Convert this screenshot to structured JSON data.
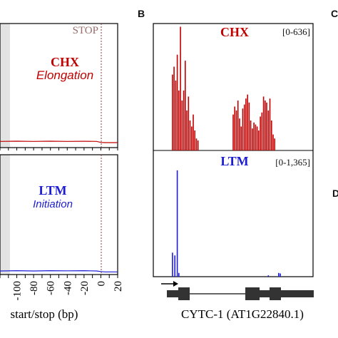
{
  "panel_labels": {
    "b": "B",
    "c": "C",
    "d": "D"
  },
  "colors": {
    "chx": "#c00000",
    "ltm": "#1c1cd6",
    "stop_line": "#8b3a3a",
    "stop_text": "#9a6b6b",
    "axis": "#000000",
    "shade": "#e3e3e3",
    "gene": "#333333"
  },
  "chart_data": [
    {
      "type": "line",
      "panel": "A-top",
      "series": [
        {
          "name": "CHX",
          "subtitle": "Elongation",
          "x": [
            -120,
            -100,
            -80,
            -60,
            -40,
            -20,
            -5,
            0,
            5,
            10,
            15,
            20
          ],
          "y": [
            0.5,
            0.52,
            0.5,
            0.52,
            0.5,
            0.51,
            0.5,
            0.42,
            0.4,
            0.4,
            0.4,
            0.4
          ]
        }
      ],
      "marker_label": "STOP",
      "marker_x": 0,
      "xlim": [
        -120,
        20
      ],
      "ylim": [
        0,
        10
      ],
      "grid": false
    },
    {
      "type": "line",
      "panel": "A-bottom",
      "series": [
        {
          "name": "LTM",
          "subtitle": "Initiation",
          "x": [
            -120,
            -100,
            -80,
            -60,
            -40,
            -20,
            -5,
            0,
            5,
            10,
            15,
            20
          ],
          "y": [
            0.3,
            0.32,
            0.3,
            0.32,
            0.31,
            0.32,
            0.3,
            0.25,
            0.22,
            0.22,
            0.22,
            0.22
          ]
        }
      ],
      "marker_x": 0,
      "xlim": [
        -120,
        20
      ],
      "ylim": [
        0,
        10
      ],
      "xticks": [
        "-100",
        "-80",
        "-60",
        "-40",
        "-20",
        "0",
        "20"
      ],
      "xtick_values": [
        -100,
        -80,
        -60,
        -40,
        -20,
        0,
        20
      ],
      "xlabel": "start/stop (bp)",
      "grid": false
    },
    {
      "type": "bar",
      "panel": "B-top",
      "series_name": "CHX",
      "range_label": "[0-636]",
      "x": [
        0.12,
        0.13,
        0.14,
        0.15,
        0.16,
        0.17,
        0.18,
        0.19,
        0.2,
        0.21,
        0.22,
        0.23,
        0.24,
        0.25,
        0.26,
        0.27,
        0.28,
        0.5,
        0.51,
        0.52,
        0.53,
        0.54,
        0.55,
        0.56,
        0.57,
        0.58,
        0.59,
        0.6,
        0.61,
        0.62,
        0.63,
        0.64,
        0.65,
        0.66,
        0.67,
        0.68,
        0.69,
        0.7,
        0.71,
        0.72,
        0.73,
        0.74,
        0.75,
        0.76
      ],
      "values": [
        380,
        420,
        350,
        480,
        300,
        620,
        250,
        300,
        450,
        200,
        270,
        150,
        120,
        180,
        100,
        60,
        50,
        180,
        220,
        200,
        250,
        160,
        120,
        210,
        230,
        260,
        280,
        240,
        150,
        110,
        140,
        130,
        120,
        100,
        170,
        190,
        270,
        250,
        240,
        200,
        260,
        150,
        80,
        60
      ],
      "ylim": [
        0,
        636
      ]
    },
    {
      "type": "bar",
      "panel": "B-bottom",
      "series_name": "LTM",
      "range_label": "[0-1,365]",
      "x": [
        0.12,
        0.135,
        0.15,
        0.16,
        0.72,
        0.785,
        0.795
      ],
      "values": [
        260,
        230,
        1150,
        40,
        15,
        40,
        35
      ],
      "ylim": [
        0,
        1365
      ]
    }
  ],
  "gene_label": "CYTC-1 (AT1G22840.1)"
}
